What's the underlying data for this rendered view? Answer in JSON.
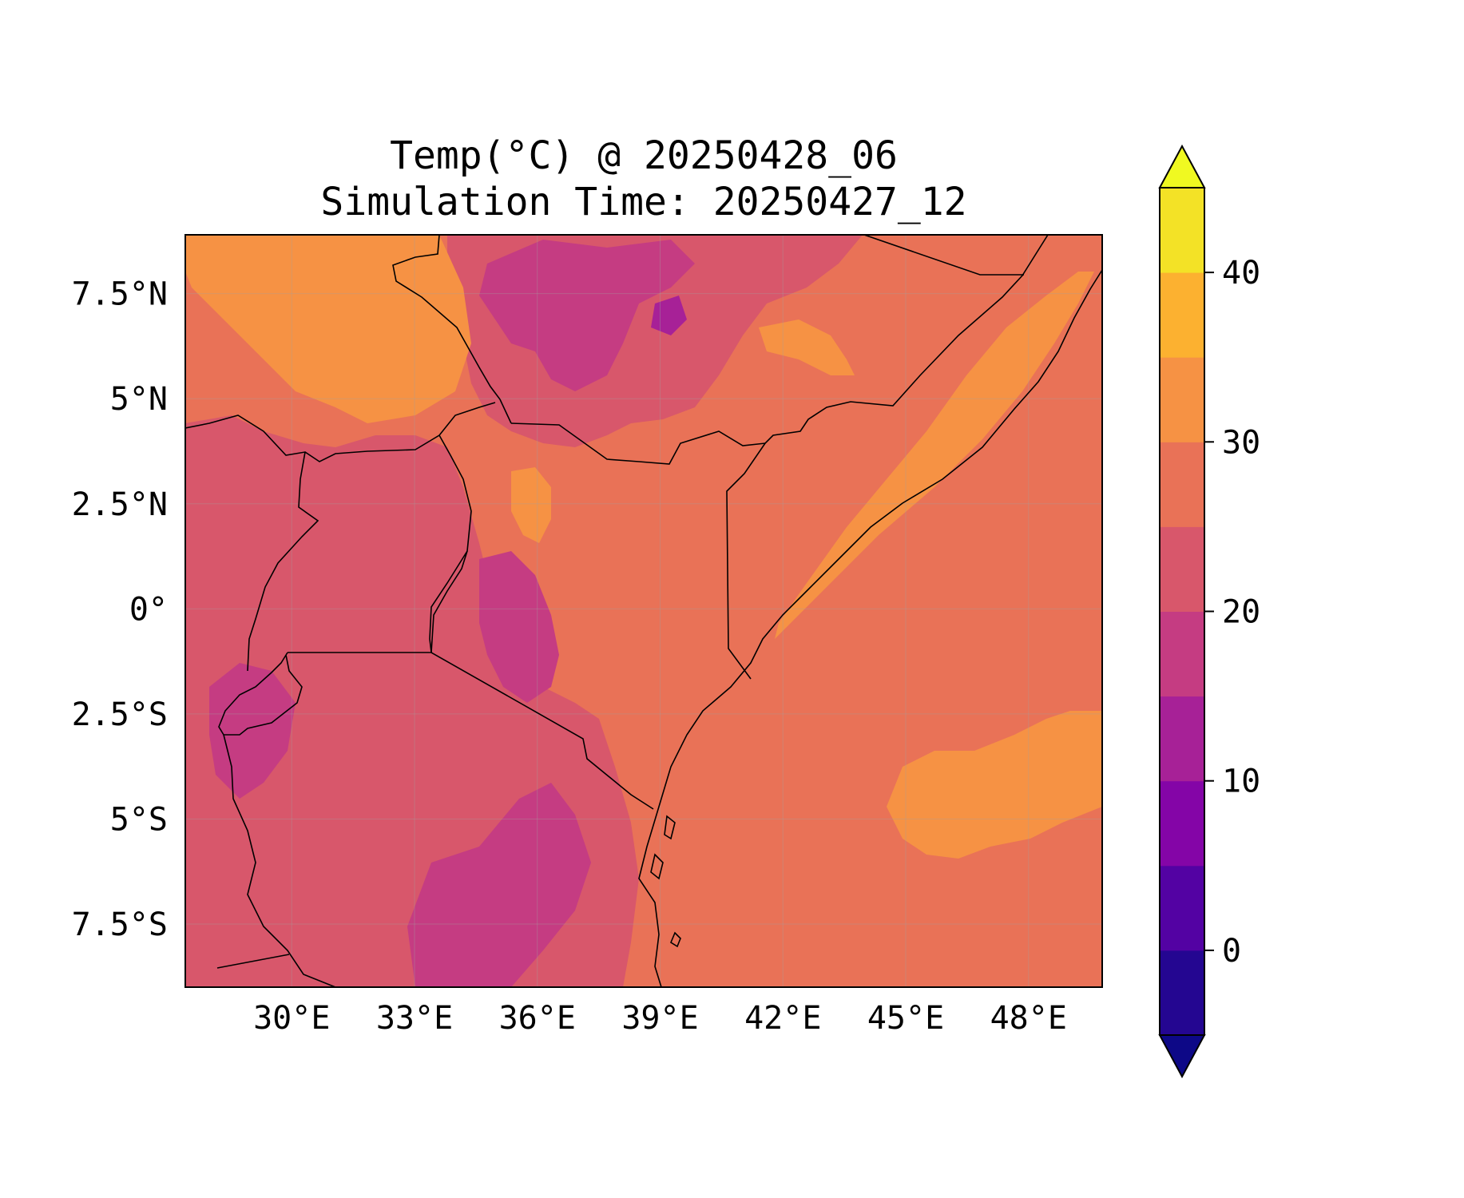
{
  "title": {
    "line1": "Temp(°C) @ 20250428_06",
    "line2": "Simulation Time: 20250427_12"
  },
  "map": {
    "variable": "Temp(°C)",
    "lon_range": [
      27.4,
      49.8
    ],
    "lat_range": [
      -9.0,
      8.9
    ],
    "lon_ticks": [
      {
        "value": 30,
        "label": "30°E"
      },
      {
        "value": 33,
        "label": "33°E"
      },
      {
        "value": 36,
        "label": "36°E"
      },
      {
        "value": 39,
        "label": "39°E"
      },
      {
        "value": 42,
        "label": "42°E"
      },
      {
        "value": 45,
        "label": "45°E"
      },
      {
        "value": 48,
        "label": "48°E"
      }
    ],
    "lat_ticks": [
      {
        "value": 7.5,
        "label": "7.5°N"
      },
      {
        "value": 5,
        "label": "5°N"
      },
      {
        "value": 2.5,
        "label": "2.5°N"
      },
      {
        "value": 0,
        "label": "0°"
      },
      {
        "value": -2.5,
        "label": "2.5°S"
      },
      {
        "value": -5,
        "label": "5°S"
      },
      {
        "value": -7.5,
        "label": "7.5°S"
      }
    ],
    "gridlines": true,
    "background_color": "#e97257"
  },
  "colorbar": {
    "placement": "right",
    "extend": "both",
    "range": [
      -5,
      45
    ],
    "levels": [
      -5,
      0,
      5,
      10,
      15,
      20,
      25,
      30,
      35,
      40,
      45
    ],
    "colors": [
      "#240691",
      "#5302a3",
      "#8405a7",
      "#a72197",
      "#c53c82",
      "#d8576b",
      "#e97257",
      "#f69244",
      "#fcb130",
      "#f3e226"
    ],
    "under_color": "#0d0887",
    "over_color": "#f0f921",
    "ticks": [
      {
        "value": 0,
        "label": "0"
      },
      {
        "value": 10,
        "label": "10"
      },
      {
        "value": 20,
        "label": "20"
      },
      {
        "value": 30,
        "label": "30"
      },
      {
        "value": 40,
        "label": "40"
      }
    ]
  }
}
